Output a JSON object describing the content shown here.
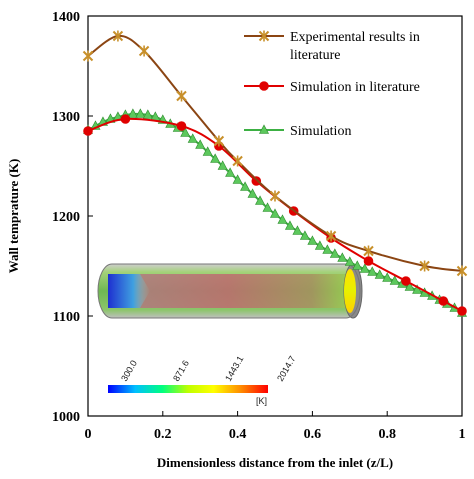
{
  "chart_data": {
    "type": "line",
    "xlabel": "Dimensionless distance from the inlet (z/L)",
    "ylabel": "Wall temprature (K)",
    "xlim": [
      0,
      1
    ],
    "ylim": [
      1000,
      1400
    ],
    "x_ticks": [
      "0",
      "0.2",
      "0.4",
      "0.6",
      "0.8",
      "1"
    ],
    "y_ticks": [
      "1000",
      "1100",
      "1200",
      "1300",
      "1400"
    ],
    "grid": false,
    "legend_position": "top-right",
    "series": [
      {
        "name": "Experimental results in literature",
        "name_lines": [
          "Experimental results in",
          "literature"
        ],
        "color": "#8B4513",
        "marker": "star",
        "marker_color": "#C8902A",
        "x": [
          0,
          0.08,
          0.15,
          0.25,
          0.35,
          0.4,
          0.5,
          0.65,
          0.75,
          0.9,
          1.0
        ],
        "y": [
          1360,
          1380,
          1365,
          1320,
          1275,
          1255,
          1220,
          1180,
          1165,
          1150,
          1145
        ]
      },
      {
        "name": "Simulation in literature",
        "name_lines": [
          "Simulation in literature"
        ],
        "color": "#E00000",
        "marker": "circle",
        "marker_color": "#E00000",
        "x": [
          0,
          0.1,
          0.25,
          0.35,
          0.45,
          0.55,
          0.65,
          0.75,
          0.85,
          0.95,
          1.0
        ],
        "y": [
          1285,
          1297,
          1290,
          1270,
          1235,
          1205,
          1178,
          1155,
          1135,
          1115,
          1105
        ]
      },
      {
        "name": "Simulation",
        "name_lines": [
          "Simulation"
        ],
        "color": "#3CB043",
        "marker": "triangle",
        "marker_color": "#5CC85C",
        "x": [
          0,
          0.02,
          0.04,
          0.06,
          0.08,
          0.1,
          0.12,
          0.14,
          0.16,
          0.18,
          0.2,
          0.22,
          0.24,
          0.26,
          0.28,
          0.3,
          0.32,
          0.34,
          0.36,
          0.38,
          0.4,
          0.42,
          0.44,
          0.46,
          0.48,
          0.5,
          0.52,
          0.54,
          0.56,
          0.58,
          0.6,
          0.62,
          0.64,
          0.66,
          0.68,
          0.7,
          0.72,
          0.74,
          0.76,
          0.78,
          0.8,
          0.82,
          0.84,
          0.86,
          0.88,
          0.9,
          0.92,
          0.94,
          0.96,
          0.98,
          1.0
        ],
        "y": [
          1286,
          1290,
          1294,
          1297,
          1299,
          1301,
          1302,
          1302,
          1301,
          1299,
          1296,
          1292,
          1288,
          1283,
          1277,
          1271,
          1264,
          1257,
          1250,
          1243,
          1236,
          1229,
          1222,
          1215,
          1208,
          1202,
          1196,
          1190,
          1185,
          1180,
          1175,
          1170,
          1166,
          1162,
          1158,
          1154,
          1150,
          1147,
          1144,
          1141,
          1138,
          1135,
          1132,
          1129,
          1126,
          1123,
          1120,
          1116,
          1112,
          1108,
          1103
        ]
      }
    ],
    "inset": {
      "colorbar_ticks": [
        "300.0",
        "871.6",
        "1443.1",
        "2014.7"
      ],
      "colorbar_unit": "[K]",
      "colormap": [
        "#0000FF",
        "#00BFFF",
        "#00FF7F",
        "#BFFF00",
        "#FFFF00",
        "#FF8C00",
        "#FF0000"
      ]
    }
  }
}
